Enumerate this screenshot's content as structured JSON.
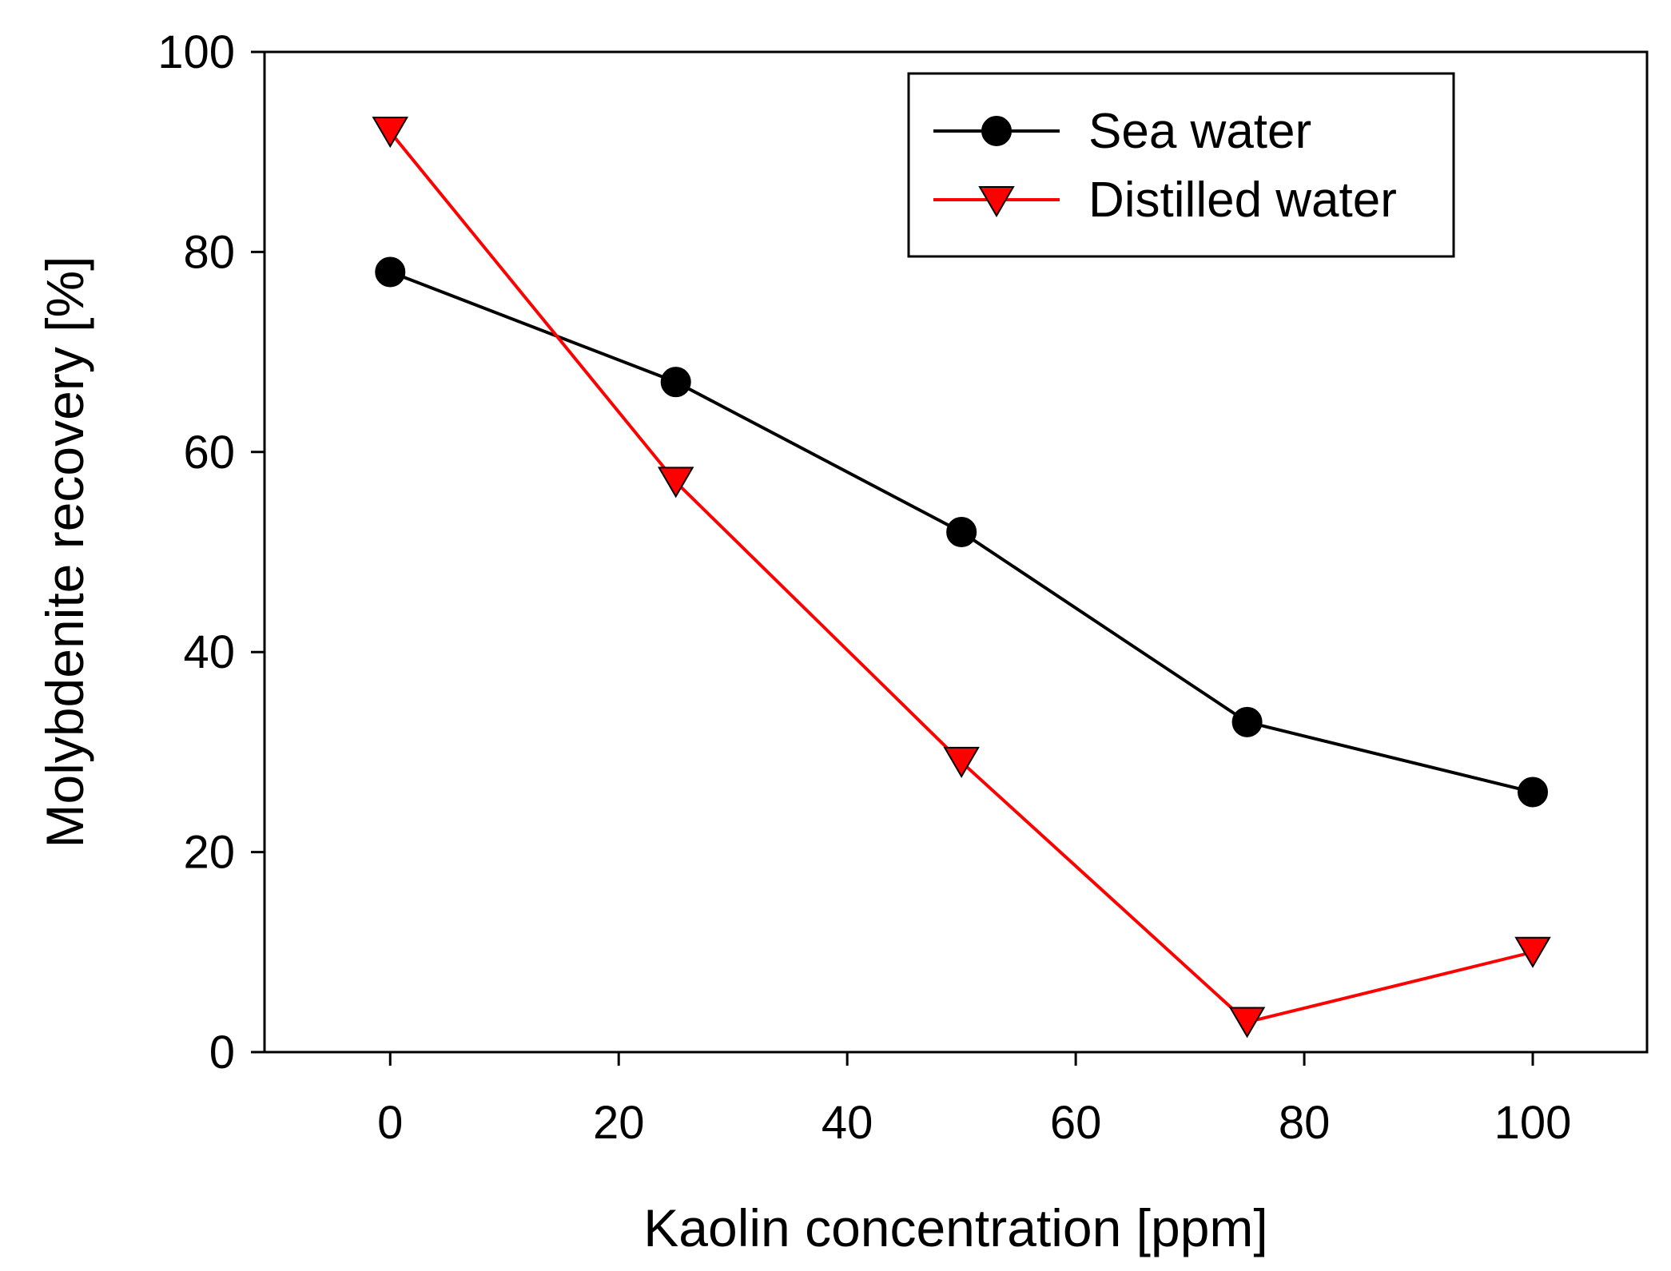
{
  "chart_data": {
    "type": "line",
    "title": "",
    "xlabel": "Kaolin concentration [ppm]",
    "ylabel": "Molybdenite recovery [%]",
    "xlim": [
      -11,
      110
    ],
    "ylim": [
      0,
      100
    ],
    "xticks": [
      "0",
      "20",
      "40",
      "60",
      "80",
      "100"
    ],
    "yticks": [
      "0",
      "20",
      "40",
      "60",
      "80",
      "100"
    ],
    "grid": false,
    "legend_position": "top-right",
    "x": [
      0,
      25,
      50,
      75,
      100
    ],
    "series": [
      {
        "name": "Sea water",
        "marker": "circle",
        "color": "#000000",
        "marker_fill": "#000000",
        "values": [
          78,
          67,
          52,
          33,
          26
        ]
      },
      {
        "name": "Distilled water",
        "marker": "triangle-down",
        "color": "#ff0000",
        "marker_fill": "#ff0000",
        "values": [
          92,
          57,
          29,
          3,
          10
        ]
      }
    ]
  }
}
